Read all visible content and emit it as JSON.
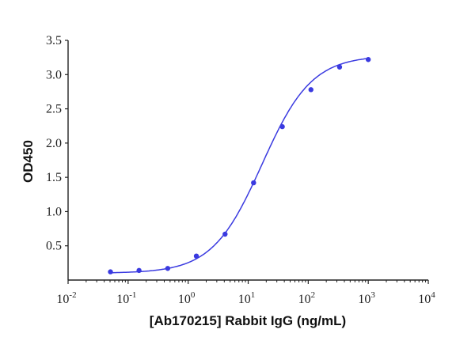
{
  "chart_data": {
    "type": "line",
    "subtype": "scatter-with-4PL-fit",
    "title": "",
    "xlabel": "[Ab170215] Rabbit IgG (ng/mL)",
    "ylabel": "OD450",
    "xscale": "log",
    "xlim": [
      0.01,
      10000
    ],
    "ylim": [
      0,
      3.5
    ],
    "x_ticks": [
      {
        "value": 0.01,
        "base": "10",
        "exp": "-2"
      },
      {
        "value": 0.1,
        "base": "10",
        "exp": "-1"
      },
      {
        "value": 1,
        "base": "10",
        "exp": "0"
      },
      {
        "value": 10,
        "base": "10",
        "exp": "1"
      },
      {
        "value": 100,
        "base": "10",
        "exp": "2"
      },
      {
        "value": 1000,
        "base": "10",
        "exp": "3"
      },
      {
        "value": 10000,
        "base": "10",
        "exp": "4"
      }
    ],
    "y_ticks": [
      "0.5",
      "1.0",
      "1.5",
      "2.0",
      "2.5",
      "3.0",
      "3.5"
    ],
    "grid": false,
    "legend": null,
    "series": [
      {
        "name": "OD450",
        "color": "#3a3ae0",
        "x": [
          0.0508,
          0.152,
          0.457,
          1.37,
          4.12,
          12.3,
          37.0,
          111,
          333,
          1000
        ],
        "values": [
          0.12,
          0.14,
          0.17,
          0.35,
          0.67,
          1.42,
          2.24,
          2.78,
          3.11,
          3.22
        ]
      }
    ]
  },
  "axes": {
    "xlabel": "[Ab170215] Rabbit IgG (ng/mL)",
    "ylabel": "OD450"
  }
}
